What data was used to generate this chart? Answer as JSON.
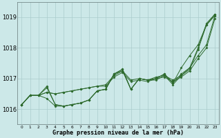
{
  "background_color": "#cce8e8",
  "grid_color": "#aacccc",
  "line_color": "#2d6a2d",
  "x_labels": [
    "0",
    "1",
    "2",
    "3",
    "4",
    "5",
    "6",
    "7",
    "8",
    "9",
    "10",
    "11",
    "12",
    "13",
    "14",
    "15",
    "16",
    "17",
    "18",
    "19",
    "20",
    "21",
    "22",
    "23"
  ],
  "xlabel": "Graphe pression niveau de la mer (hPa)",
  "ylim": [
    1015.5,
    1019.5
  ],
  "yticks": [
    1016,
    1017,
    1018,
    1019
  ],
  "series": [
    [
      1016.15,
      1016.45,
      1016.45,
      1016.55,
      1016.5,
      1016.55,
      1016.6,
      1016.65,
      1016.7,
      1016.75,
      1016.8,
      1017.1,
      1017.25,
      1016.95,
      1017.0,
      1016.95,
      1017.05,
      1017.1,
      1016.95,
      1017.1,
      1017.35,
      1017.75,
      1018.1,
      1019.05
    ],
    [
      1016.15,
      1016.45,
      1016.45,
      1016.55,
      1016.5,
      1016.55,
      1016.6,
      1016.65,
      1016.7,
      1016.75,
      1016.75,
      1017.05,
      1017.2,
      1016.9,
      1016.95,
      1016.9,
      1017.0,
      1017.05,
      1016.9,
      1017.05,
      1017.25,
      1017.65,
      1018.0,
      1018.95
    ],
    [
      1016.15,
      1016.45,
      1016.45,
      1016.7,
      1016.15,
      1016.1,
      1016.15,
      1016.2,
      1016.3,
      1016.6,
      1016.65,
      1017.15,
      1017.3,
      1016.65,
      1017.0,
      1016.95,
      1017.0,
      1017.15,
      1016.85,
      1017.15,
      1017.35,
      1018.0,
      1018.8,
      1019.1
    ],
    [
      1016.15,
      1016.45,
      1016.45,
      1016.35,
      1016.1,
      1016.1,
      1016.15,
      1016.2,
      1016.3,
      1016.6,
      1016.65,
      1017.15,
      1017.25,
      1016.65,
      1017.0,
      1016.95,
      1016.95,
      1017.1,
      1016.8,
      1017.1,
      1017.3,
      1017.95,
      1018.75,
      1019.05
    ]
  ],
  "series_wide": [
    1016.15,
    1016.45,
    1016.45,
    1016.75,
    1016.15,
    1016.1,
    1016.15,
    1016.2,
    1016.3,
    1016.6,
    1016.65,
    1017.15,
    1017.3,
    1016.65,
    1017.0,
    1016.95,
    1017.0,
    1017.15,
    1016.85,
    1017.35,
    1017.75,
    1018.1,
    1018.75,
    1019.1
  ]
}
